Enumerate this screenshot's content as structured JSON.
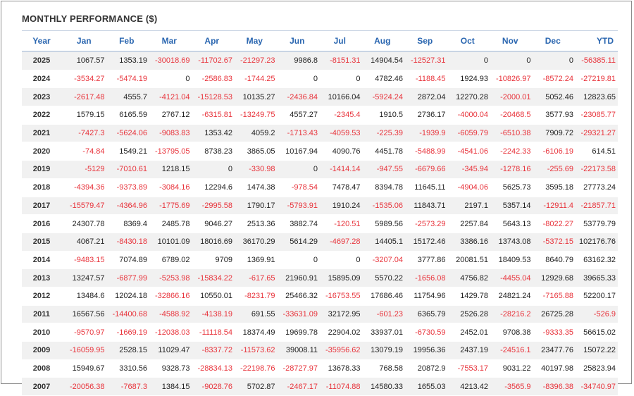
{
  "title": "MONTHLY PERFORMANCE ($)",
  "colors": {
    "header_text": "#2a66b0",
    "negative": "#e8333b",
    "positive": "#222222",
    "row_alt_bg": "#f1f1f1"
  },
  "headers": [
    "Year",
    "Jan",
    "Feb",
    "Mar",
    "Apr",
    "May",
    "Jun",
    "Jul",
    "Aug",
    "Sep",
    "Oct",
    "Nov",
    "Dec",
    "YTD"
  ],
  "rows": [
    [
      "2025",
      "1067.57",
      "1353.19",
      "-30018.69",
      "-11702.67",
      "-21297.23",
      "9986.8",
      "-8151.31",
      "14904.54",
      "-12527.31",
      "0",
      "0",
      "0",
      "-56385.11"
    ],
    [
      "2024",
      "-3534.27",
      "-5474.19",
      "0",
      "-2586.83",
      "-1744.25",
      "0",
      "0",
      "4782.46",
      "-1188.45",
      "1924.93",
      "-10826.97",
      "-8572.24",
      "-27219.81"
    ],
    [
      "2023",
      "-2617.48",
      "4555.7",
      "-4121.04",
      "-15128.53",
      "10135.27",
      "-2436.84",
      "10166.04",
      "-5924.24",
      "2872.04",
      "12270.28",
      "-2000.01",
      "5052.46",
      "12823.65"
    ],
    [
      "2022",
      "1579.15",
      "6165.59",
      "2767.12",
      "-6315.81",
      "-13249.75",
      "4557.27",
      "-2345.4",
      "1910.5",
      "2736.17",
      "-4000.04",
      "-20468.5",
      "3577.93",
      "-23085.77"
    ],
    [
      "2021",
      "-7427.3",
      "-5624.06",
      "-9083.83",
      "1353.42",
      "4059.2",
      "-1713.43",
      "-4059.53",
      "-225.39",
      "-1939.9",
      "-6059.79",
      "-6510.38",
      "7909.72",
      "-29321.27"
    ],
    [
      "2020",
      "-74.84",
      "1549.21",
      "-13795.05",
      "8738.23",
      "3865.05",
      "10167.94",
      "4090.76",
      "4451.78",
      "-5488.99",
      "-4541.06",
      "-2242.33",
      "-6106.19",
      "614.51"
    ],
    [
      "2019",
      "-5129",
      "-7010.61",
      "1218.15",
      "0",
      "-330.98",
      "0",
      "-1414.14",
      "-947.55",
      "-6679.66",
      "-345.94",
      "-1278.16",
      "-255.69",
      "-22173.58"
    ],
    [
      "2018",
      "-4394.36",
      "-9373.89",
      "-3084.16",
      "12294.6",
      "1474.38",
      "-978.54",
      "7478.47",
      "8394.78",
      "11645.11",
      "-4904.06",
      "5625.73",
      "3595.18",
      "27773.24"
    ],
    [
      "2017",
      "-15579.47",
      "-4364.96",
      "-1775.69",
      "-2995.58",
      "1790.17",
      "-5793.91",
      "1910.24",
      "-1535.06",
      "11843.71",
      "2197.1",
      "5357.14",
      "-12911.4",
      "-21857.71"
    ],
    [
      "2016",
      "24307.78",
      "8369.4",
      "2485.78",
      "9046.27",
      "2513.36",
      "3882.74",
      "-120.51",
      "5989.56",
      "-2573.29",
      "2257.84",
      "5643.13",
      "-8022.27",
      "53779.79"
    ],
    [
      "2015",
      "4067.21",
      "-8430.18",
      "10101.09",
      "18016.69",
      "36170.29",
      "5614.29",
      "-4697.28",
      "14405.1",
      "15172.46",
      "3386.16",
      "13743.08",
      "-5372.15",
      "102176.76"
    ],
    [
      "2014",
      "-9483.15",
      "7074.89",
      "6789.02",
      "9709",
      "1369.91",
      "0",
      "0",
      "-3207.04",
      "3777.86",
      "20081.51",
      "18409.53",
      "8640.79",
      "63162.32"
    ],
    [
      "2013",
      "13247.57",
      "-6877.99",
      "-5253.98",
      "-15834.22",
      "-617.65",
      "21960.91",
      "15895.09",
      "5570.22",
      "-1656.08",
      "4756.82",
      "-4455.04",
      "12929.68",
      "39665.33"
    ],
    [
      "2012",
      "13484.6",
      "12024.18",
      "-32866.16",
      "10550.01",
      "-8231.79",
      "25466.32",
      "-16753.55",
      "17686.46",
      "11754.96",
      "1429.78",
      "24821.24",
      "-7165.88",
      "52200.17"
    ],
    [
      "2011",
      "16567.56",
      "-14400.68",
      "-4588.92",
      "-4138.19",
      "691.55",
      "-33631.09",
      "32172.95",
      "-601.23",
      "6365.79",
      "2526.28",
      "-28216.2",
      "26725.28",
      "-526.9"
    ],
    [
      "2010",
      "-9570.97",
      "-1669.19",
      "-12038.03",
      "-11118.54",
      "18374.49",
      "19699.78",
      "22904.02",
      "33937.01",
      "-6730.59",
      "2452.01",
      "9708.38",
      "-9333.35",
      "56615.02"
    ],
    [
      "2009",
      "-16059.95",
      "2528.15",
      "11029.47",
      "-8337.72",
      "-11573.62",
      "39008.11",
      "-35956.62",
      "13079.19",
      "19956.36",
      "2437.19",
      "-24516.1",
      "23477.76",
      "15072.22"
    ],
    [
      "2008",
      "15949.67",
      "3310.56",
      "9328.73",
      "-28834.13",
      "-22198.76",
      "-28727.97",
      "13678.33",
      "768.58",
      "20872.9",
      "-7553.17",
      "9031.22",
      "40197.98",
      "25823.94"
    ],
    [
      "2007",
      "-20056.38",
      "-7687.3",
      "1384.15",
      "-9028.76",
      "5702.87",
      "-2467.17",
      "-11074.88",
      "14580.33",
      "1655.03",
      "4213.42",
      "-3565.9",
      "-8396.38",
      "-34740.97"
    ]
  ]
}
